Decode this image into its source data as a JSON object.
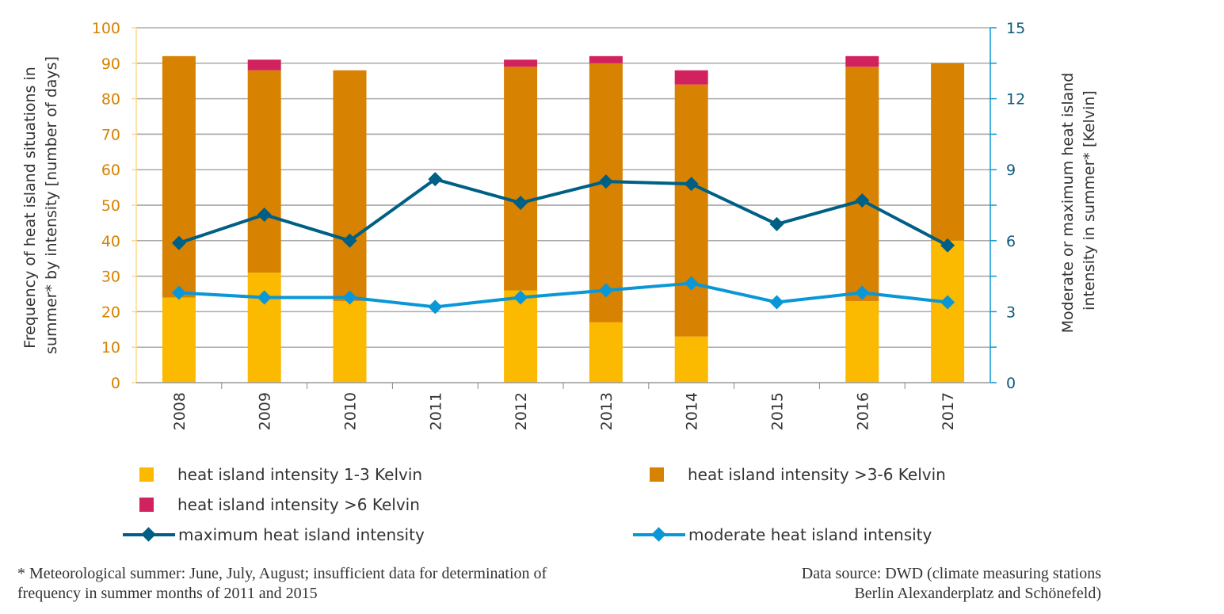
{
  "chart_data": {
    "type": "bar",
    "subtype": "stacked-bar-with-lines-dual-axis",
    "categories": [
      "2008",
      "2009",
      "2010",
      "2011",
      "2012",
      "2013",
      "2014",
      "2015",
      "2016",
      "2017"
    ],
    "series": [
      {
        "name": "heat island intensity 1-3 Kelvin",
        "type": "bar",
        "axis": "left",
        "color": "#FBB900",
        "values": [
          24,
          31,
          23,
          null,
          26,
          17,
          13,
          null,
          23,
          40
        ]
      },
      {
        "name": "heat island intensity >3-6 Kelvin",
        "type": "bar",
        "axis": "left",
        "color": "#D78200",
        "values": [
          68,
          57,
          65,
          null,
          63,
          73,
          71,
          null,
          66,
          50
        ]
      },
      {
        "name": "heat island intensity >6 Kelvin",
        "type": "bar",
        "axis": "left",
        "color": "#D2215F",
        "values": [
          0,
          3,
          0,
          null,
          2,
          2,
          4,
          null,
          3,
          0
        ]
      },
      {
        "name": "maximum heat island intensity",
        "type": "line",
        "axis": "right",
        "color": "#005F85",
        "values": [
          5.9,
          7.1,
          6.0,
          8.6,
          7.6,
          8.5,
          8.4,
          6.7,
          7.7,
          5.8
        ]
      },
      {
        "name": "moderate heat island intensity",
        "type": "line",
        "axis": "right",
        "color": "#0A97D8",
        "values": [
          3.8,
          3.6,
          3.6,
          3.2,
          3.6,
          3.9,
          4.2,
          3.4,
          3.8,
          3.4
        ]
      }
    ],
    "title": "",
    "xlabel": "",
    "ylabel": "Frequency of heat island situations in summer* by intensity [number of days]",
    "ylabel_lines": [
      "Frequency of heat island situations in",
      "summer* by intensity [number of days]"
    ],
    "ylabel_right": "Moderate or maximum heat island intensity in summer* [Kelvin]",
    "ylabel_right_lines": [
      "Moderate or maximum heat island",
      "intensity in summer* [Kelvin]"
    ],
    "ylim": [
      0,
      100
    ],
    "yticks": [
      0,
      10,
      20,
      30,
      40,
      50,
      60,
      70,
      80,
      90,
      100
    ],
    "ylim_right": [
      0,
      15
    ],
    "yticks_right": [
      0,
      3,
      6,
      9,
      12,
      15
    ],
    "grid": true,
    "legend_position": "bottom",
    "legend": [
      {
        "label": "heat island intensity 1-3 Kelvin",
        "kind": "square",
        "color": "#FBB900"
      },
      {
        "label": "heat island intensity >3-6 Kelvin",
        "kind": "square",
        "color": "#D78200"
      },
      {
        "label": "heat island intensity >6 Kelvin",
        "kind": "square",
        "color": "#D2215F"
      },
      {
        "label": "maximum heat island intensity",
        "kind": "line-diamond",
        "color": "#005F85"
      },
      {
        "label": "moderate heat island intensity",
        "kind": "line-diamond",
        "color": "#0A97D8"
      }
    ]
  },
  "footnote": {
    "lines": [
      "* Meteorological summer: June, July, August; insufficient data for determination of",
      "frequency in summer months of 2011 and 2015"
    ]
  },
  "source": {
    "lines": [
      "Data source: DWD (climate measuring stations",
      "Berlin Alexanderplatz and Schönefeld)"
    ]
  },
  "colors": {
    "left_axis_text": "#D78200",
    "left_axis_line": "#FDD889",
    "right_axis_text": "#0E5A7E",
    "right_axis_line": "#0A97D8",
    "grid": "#AAAAAA"
  }
}
